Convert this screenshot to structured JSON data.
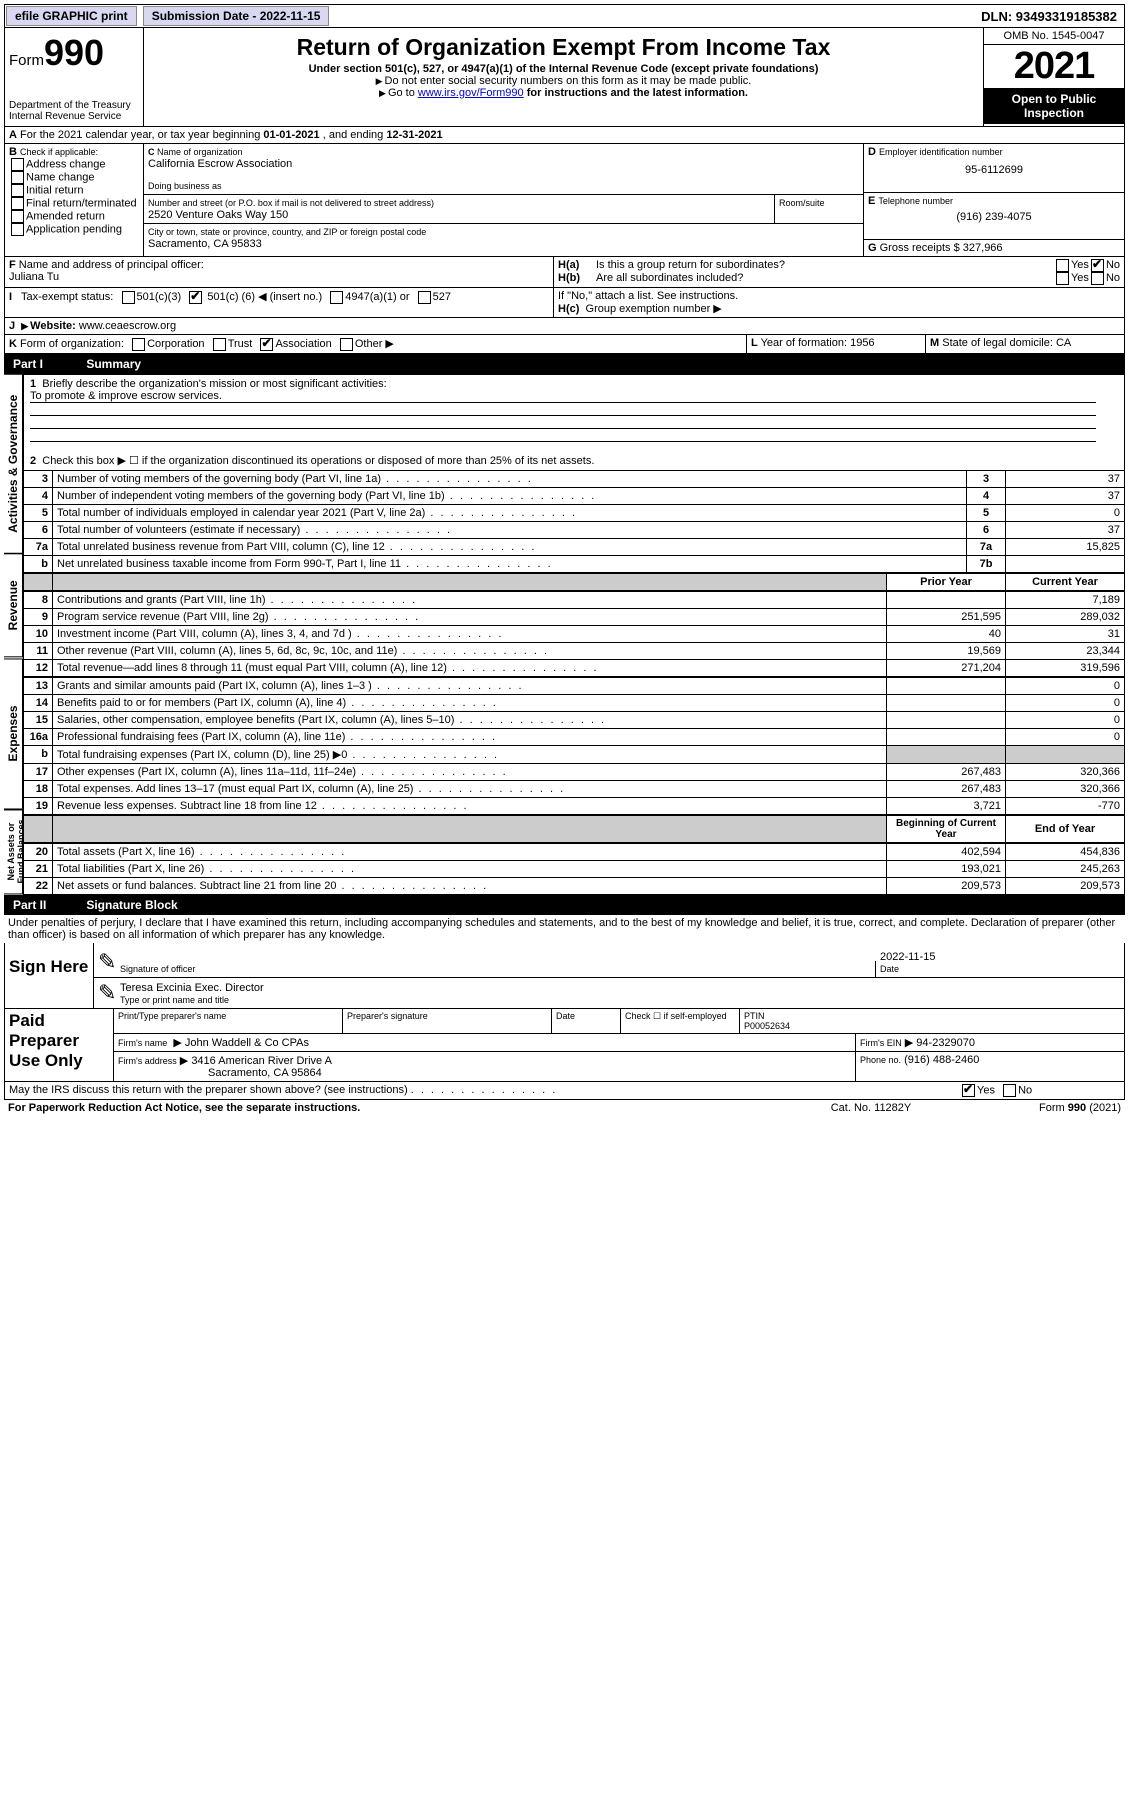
{
  "topbar": {
    "efile": "efile GRAPHIC print",
    "submission_label": "Submission Date - 2022-11-15",
    "dln": "DLN: 93493319185382"
  },
  "header": {
    "form_prefix": "Form",
    "form_number": "990",
    "dept": "Department of the Treasury",
    "irs": "Internal Revenue Service",
    "title": "Return of Organization Exempt From Income Tax",
    "subtitle": "Under section 501(c), 527, or 4947(a)(1) of the Internal Revenue Code (except private foundations)",
    "note1": "Do not enter social security numbers on this form as it may be made public.",
    "note2_pre": "Go to ",
    "note2_link": "www.irs.gov/Form990",
    "note2_post": " for instructions and the latest information.",
    "omb": "OMB No. 1545-0047",
    "year": "2021",
    "inspection": "Open to Public Inspection"
  },
  "period": {
    "text_a": "For the 2021 calendar year, or tax year beginning ",
    "begin": "01-01-2021",
    "text_b": " , and ending ",
    "end": "12-31-2021"
  },
  "section_b": {
    "label": "Check if applicable:",
    "items": [
      "Address change",
      "Name change",
      "Initial return",
      "Final return/terminated",
      "Amended return",
      "Application pending"
    ]
  },
  "section_c": {
    "name_label": "Name of organization",
    "name": "California Escrow Association",
    "dba_label": "Doing business as",
    "street_label": "Number and street (or P.O. box if mail is not delivered to street address)",
    "room_label": "Room/suite",
    "street": "2520 Venture Oaks Way 150",
    "city_label": "City or town, state or province, country, and ZIP or foreign postal code",
    "city": "Sacramento, CA  95833"
  },
  "section_d": {
    "label": "Employer identification number",
    "ein": "95-6112699"
  },
  "section_e": {
    "label": "Telephone number",
    "phone": "(916) 239-4075"
  },
  "section_g": {
    "label": "Gross receipts $",
    "amount": "327,966"
  },
  "section_f": {
    "label": "Name and address of principal officer:",
    "name": "Juliana Tu"
  },
  "section_h": {
    "ha": "Is this a group return for subordinates?",
    "hb": "Are all subordinates included?",
    "hb_note": "If \"No,\" attach a list. See instructions.",
    "hc": "Group exemption number"
  },
  "section_i": {
    "label": "Tax-exempt status:",
    "opt1": "501(c)(3)",
    "opt2_pre": "501(c) (",
    "opt2_val": "6",
    "opt2_post": ") ◀ (insert no.)",
    "opt3": "4947(a)(1) or",
    "opt4": "527"
  },
  "section_j": {
    "label": "Website:",
    "url": "www.ceaescrow.org"
  },
  "section_k": {
    "label": "Form of organization:",
    "opts": [
      "Corporation",
      "Trust",
      "Association",
      "Other"
    ]
  },
  "section_l": {
    "label": "Year of formation:",
    "val": "1956"
  },
  "section_m": {
    "label": "State of legal domicile:",
    "val": "CA"
  },
  "part1": {
    "title": "Part I",
    "subtitle": "Summary",
    "q1": "Briefly describe the organization's mission or most significant activities:",
    "a1": "To promote & improve escrow services.",
    "q2": "Check this box ▶ ☐  if the organization discontinued its operations or disposed of more than 25% of its net assets."
  },
  "gov_lines": [
    {
      "n": "3",
      "d": "Number of voting members of the governing body (Part VI, line 1a)",
      "b": "3",
      "v": "37"
    },
    {
      "n": "4",
      "d": "Number of independent voting members of the governing body (Part VI, line 1b)",
      "b": "4",
      "v": "37"
    },
    {
      "n": "5",
      "d": "Total number of individuals employed in calendar year 2021 (Part V, line 2a)",
      "b": "5",
      "v": "0"
    },
    {
      "n": "6",
      "d": "Total number of volunteers (estimate if necessary)",
      "b": "6",
      "v": "37"
    },
    {
      "n": "7a",
      "d": "Total unrelated business revenue from Part VIII, column (C), line 12",
      "b": "7a",
      "v": "15,825"
    },
    {
      "n": "b",
      "d": "Net unrelated business taxable income from Form 990-T, Part I, line 11",
      "b": "7b",
      "v": ""
    }
  ],
  "col_hdr": {
    "prior": "Prior Year",
    "current": "Current Year",
    "boy": "Beginning of Current Year",
    "eoy": "End of Year"
  },
  "rev_lines": [
    {
      "n": "8",
      "d": "Contributions and grants (Part VIII, line 1h)",
      "p": "",
      "c": "7,189"
    },
    {
      "n": "9",
      "d": "Program service revenue (Part VIII, line 2g)",
      "p": "251,595",
      "c": "289,032"
    },
    {
      "n": "10",
      "d": "Investment income (Part VIII, column (A), lines 3, 4, and 7d )",
      "p": "40",
      "c": "31"
    },
    {
      "n": "11",
      "d": "Other revenue (Part VIII, column (A), lines 5, 6d, 8c, 9c, 10c, and 11e)",
      "p": "19,569",
      "c": "23,344"
    },
    {
      "n": "12",
      "d": "Total revenue—add lines 8 through 11 (must equal Part VIII, column (A), line 12)",
      "p": "271,204",
      "c": "319,596"
    }
  ],
  "exp_lines": [
    {
      "n": "13",
      "d": "Grants and similar amounts paid (Part IX, column (A), lines 1–3 )",
      "p": "",
      "c": "0"
    },
    {
      "n": "14",
      "d": "Benefits paid to or for members (Part IX, column (A), line 4)",
      "p": "",
      "c": "0"
    },
    {
      "n": "15",
      "d": "Salaries, other compensation, employee benefits (Part IX, column (A), lines 5–10)",
      "p": "",
      "c": "0"
    },
    {
      "n": "16a",
      "d": "Professional fundraising fees (Part IX, column (A), line 11e)",
      "p": "",
      "c": "0"
    },
    {
      "n": "b",
      "d": "Total fundraising expenses (Part IX, column (D), line 25) ▶0",
      "p": "grey",
      "c": "grey"
    },
    {
      "n": "17",
      "d": "Other expenses (Part IX, column (A), lines 11a–11d, 11f–24e)",
      "p": "267,483",
      "c": "320,366"
    },
    {
      "n": "18",
      "d": "Total expenses. Add lines 13–17 (must equal Part IX, column (A), line 25)",
      "p": "267,483",
      "c": "320,366"
    },
    {
      "n": "19",
      "d": "Revenue less expenses. Subtract line 18 from line 12",
      "p": "3,721",
      "c": "-770"
    }
  ],
  "net_lines": [
    {
      "n": "20",
      "d": "Total assets (Part X, line 16)",
      "p": "402,594",
      "c": "454,836"
    },
    {
      "n": "21",
      "d": "Total liabilities (Part X, line 26)",
      "p": "193,021",
      "c": "245,263"
    },
    {
      "n": "22",
      "d": "Net assets or fund balances. Subtract line 21 from line 20",
      "p": "209,573",
      "c": "209,573"
    }
  ],
  "part2": {
    "title": "Part II",
    "subtitle": "Signature Block",
    "perjury": "Under penalties of perjury, I declare that I have examined this return, including accompanying schedules and statements, and to the best of my knowledge and belief, it is true, correct, and complete. Declaration of preparer (other than officer) is based on all information of which preparer has any knowledge."
  },
  "sign": {
    "here": "Sign Here",
    "sig_label": "Signature of officer",
    "date": "2022-11-15",
    "date_label": "Date",
    "name": "Teresa Excinia  Exec. Director",
    "name_label": "Type or print name and title"
  },
  "preparer": {
    "title": "Paid Preparer Use Only",
    "name_label": "Print/Type preparer's name",
    "sig_label": "Preparer's signature",
    "date_label": "Date",
    "check_label": "Check ☐ if self-employed",
    "ptin_label": "PTIN",
    "ptin": "P00052634",
    "firm_name_label": "Firm's name",
    "firm_name": "John Waddell & Co CPAs",
    "firm_ein_label": "Firm's EIN",
    "firm_ein": "94-2329070",
    "firm_addr_label": "Firm's address",
    "firm_addr1": "3416 American River Drive A",
    "firm_addr2": "Sacramento, CA  95864",
    "phone_label": "Phone no.",
    "phone": "(916) 488-2460"
  },
  "footer": {
    "discuss": "May the IRS discuss this return with the preparer shown above? (see instructions)",
    "paperwork": "For Paperwork Reduction Act Notice, see the separate instructions.",
    "cat": "Cat. No. 11282Y",
    "form": "Form 990 (2021)"
  },
  "labels": {
    "yes": "Yes",
    "no": "No",
    "a": "A",
    "b": "B",
    "c": "C",
    "d": "D",
    "e": "E",
    "f": "F",
    "g": "G",
    "i": "I",
    "j": "J",
    "k": "K",
    "l": "L",
    "m": "M",
    "ha": "H(a)",
    "hb": "H(b)",
    "hc": "H(c)",
    "one": "1",
    "two": "2",
    "vert_gov": "Activities & Governance",
    "vert_rev": "Revenue",
    "vert_exp": "Expenses",
    "vert_net": "Net Assets or Fund Balances"
  }
}
